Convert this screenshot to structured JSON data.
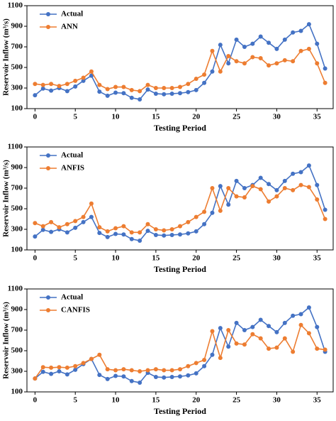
{
  "chart_data": [
    {
      "type": "line",
      "x_label": "Testing Period",
      "y_label": "Reservoir Inflow (m³/s)",
      "x": [
        0,
        1,
        2,
        3,
        4,
        5,
        6,
        7,
        8,
        9,
        10,
        11,
        12,
        13,
        14,
        15,
        16,
        17,
        18,
        19,
        20,
        21,
        22,
        23,
        24,
        25,
        26,
        27,
        28,
        29,
        30,
        31,
        32,
        33,
        34,
        35,
        36
      ],
      "xlim": [
        -1,
        37
      ],
      "xticks": [
        0,
        5,
        10,
        15,
        20,
        25,
        30,
        35
      ],
      "ylim": [
        100,
        1100
      ],
      "yticks": [
        100,
        300,
        500,
        700,
        900,
        1100
      ],
      "legend": "upper left",
      "grid": false,
      "series": [
        {
          "name": "Actual",
          "color": "#4472c4",
          "values": [
            230,
            295,
            275,
            300,
            270,
            315,
            370,
            420,
            265,
            225,
            255,
            250,
            205,
            190,
            285,
            245,
            240,
            245,
            250,
            260,
            280,
            350,
            460,
            720,
            540,
            770,
            700,
            730,
            800,
            740,
            680,
            770,
            840,
            855,
            920,
            730,
            490
          ]
        },
        {
          "name": "ANN",
          "color": "#ed7d31",
          "values": [
            340,
            330,
            340,
            320,
            340,
            370,
            400,
            460,
            330,
            290,
            310,
            310,
            280,
            270,
            330,
            300,
            300,
            300,
            310,
            340,
            390,
            430,
            660,
            460,
            610,
            560,
            540,
            600,
            590,
            520,
            540,
            570,
            560,
            660,
            680,
            540,
            350
          ]
        }
      ]
    },
    {
      "type": "line",
      "x_label": "Testing Period",
      "y_label": "Reservoir Inflow (m³/s)",
      "x": [
        0,
        1,
        2,
        3,
        4,
        5,
        6,
        7,
        8,
        9,
        10,
        11,
        12,
        13,
        14,
        15,
        16,
        17,
        18,
        19,
        20,
        21,
        22,
        23,
        24,
        25,
        26,
        27,
        28,
        29,
        30,
        31,
        32,
        33,
        34,
        35,
        36
      ],
      "xlim": [
        -1,
        37
      ],
      "xticks": [
        0,
        5,
        10,
        15,
        20,
        25,
        30,
        35
      ],
      "ylim": [
        100,
        1100
      ],
      "yticks": [
        100,
        300,
        500,
        700,
        900,
        1100
      ],
      "legend": "upper left",
      "grid": false,
      "series": [
        {
          "name": "Actual",
          "color": "#4472c4",
          "values": [
            230,
            295,
            275,
            300,
            270,
            315,
            370,
            420,
            265,
            225,
            255,
            250,
            205,
            190,
            285,
            245,
            240,
            245,
            250,
            260,
            280,
            350,
            460,
            720,
            540,
            770,
            700,
            730,
            800,
            740,
            680,
            770,
            840,
            855,
            920,
            730,
            490
          ]
        },
        {
          "name": "ANFIS",
          "color": "#ed7d31",
          "values": [
            360,
            330,
            370,
            320,
            350,
            380,
            420,
            550,
            320,
            280,
            310,
            330,
            270,
            270,
            350,
            300,
            290,
            300,
            330,
            370,
            420,
            470,
            700,
            480,
            700,
            620,
            610,
            720,
            690,
            570,
            620,
            700,
            680,
            730,
            710,
            590,
            400
          ]
        }
      ]
    },
    {
      "type": "line",
      "x_label": "Testing Period",
      "y_label": "Reservoir Inflow (m³/s)",
      "x": [
        0,
        1,
        2,
        3,
        4,
        5,
        6,
        7,
        8,
        9,
        10,
        11,
        12,
        13,
        14,
        15,
        16,
        17,
        18,
        19,
        20,
        21,
        22,
        23,
        24,
        25,
        26,
        27,
        28,
        29,
        30,
        31,
        32,
        33,
        34,
        35,
        36
      ],
      "xlim": [
        -1,
        37
      ],
      "xticks": [
        0,
        5,
        10,
        15,
        20,
        25,
        30,
        35
      ],
      "ylim": [
        100,
        1100
      ],
      "yticks": [
        100,
        300,
        500,
        700,
        900,
        1100
      ],
      "legend": "upper left",
      "grid": false,
      "series": [
        {
          "name": "Actual",
          "color": "#4472c4",
          "values": [
            230,
            295,
            275,
            300,
            270,
            315,
            370,
            420,
            265,
            225,
            255,
            250,
            205,
            190,
            285,
            245,
            240,
            245,
            250,
            260,
            280,
            350,
            460,
            720,
            540,
            770,
            700,
            730,
            800,
            740,
            680,
            770,
            840,
            855,
            920,
            730,
            490
          ]
        },
        {
          "name": "CANFIS",
          "color": "#ed7d31",
          "values": [
            230,
            340,
            335,
            340,
            335,
            350,
            380,
            420,
            460,
            320,
            310,
            320,
            310,
            300,
            310,
            320,
            310,
            310,
            320,
            350,
            380,
            410,
            690,
            430,
            700,
            570,
            560,
            660,
            620,
            520,
            530,
            620,
            490,
            750,
            670,
            520,
            510
          ]
        }
      ]
    }
  ]
}
